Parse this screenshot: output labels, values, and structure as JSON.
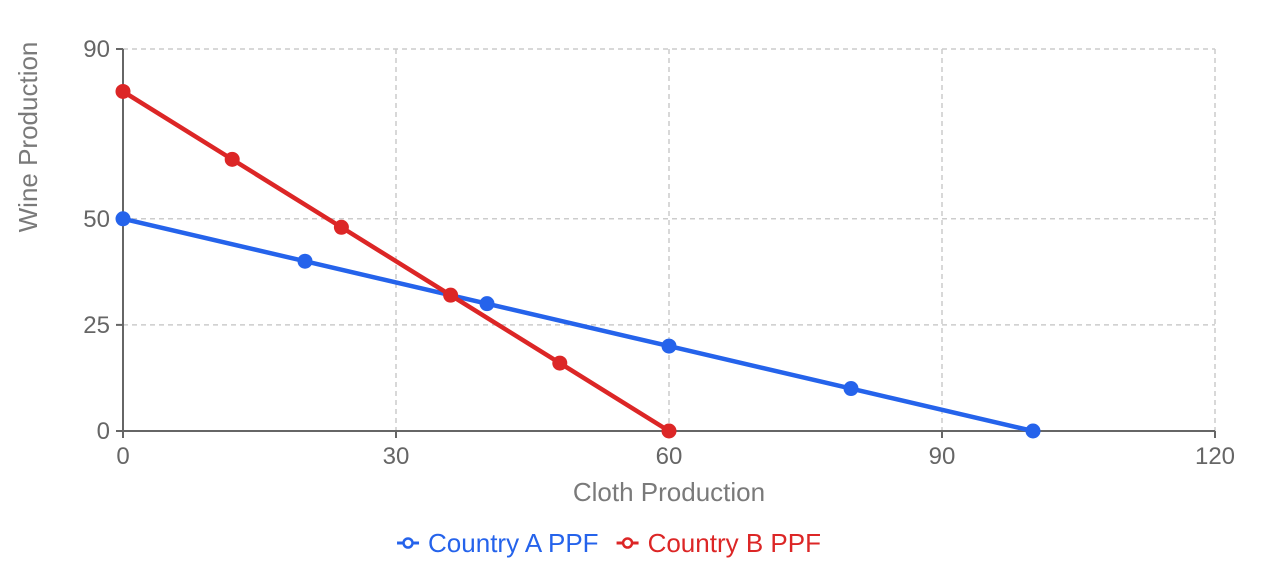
{
  "chart_data": {
    "type": "line",
    "xlabel": "Cloth Production",
    "ylabel": "Wine Production",
    "xlim": [
      0,
      120
    ],
    "ylim": [
      0,
      90
    ],
    "x_ticks": [
      0,
      30,
      60,
      90,
      120
    ],
    "y_ticks": [
      0,
      25,
      50,
      90
    ],
    "grid": true,
    "legend_position": "bottom-center",
    "series": [
      {
        "name": "Country A PPF",
        "color": "#2563eb",
        "x": [
          0,
          20,
          40,
          60,
          80,
          100
        ],
        "y": [
          50,
          40,
          30,
          20,
          10,
          0
        ]
      },
      {
        "name": "Country B PPF",
        "color": "#dc2626",
        "x": [
          0,
          12,
          24,
          36,
          48,
          60
        ],
        "y": [
          80,
          64,
          48,
          32,
          16,
          0
        ]
      }
    ]
  }
}
